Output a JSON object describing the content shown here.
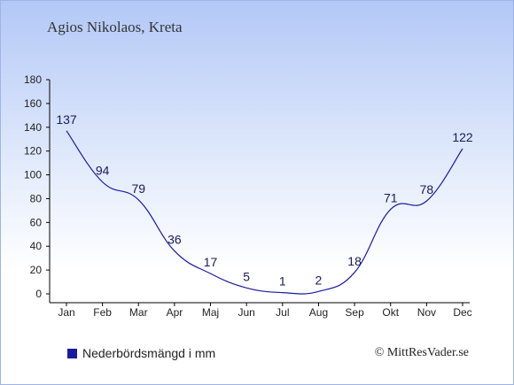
{
  "header": {
    "title": "Agios Nikolaos, Kreta"
  },
  "legend": {
    "label": "Nederbördsmängd i mm"
  },
  "credit": {
    "text": "© MittResVader.se"
  },
  "colors": {
    "line": "#1a1aa0",
    "axis": "#000000"
  },
  "chart_data": {
    "type": "line",
    "title": "Agios Nikolaos, Kreta",
    "xlabel": "",
    "ylabel": "",
    "categories": [
      "Jan",
      "Feb",
      "Mar",
      "Apr",
      "Maj",
      "Jun",
      "Jul",
      "Aug",
      "Sep",
      "Okt",
      "Nov",
      "Dec"
    ],
    "series": [
      {
        "name": "Nederbördsmängd i mm",
        "values": [
          137,
          94,
          79,
          36,
          17,
          5,
          1,
          2,
          18,
          71,
          78,
          122
        ]
      }
    ],
    "ylim": [
      0,
      180
    ],
    "yticks": [
      0,
      20,
      40,
      60,
      80,
      100,
      120,
      140,
      160,
      180
    ],
    "grid": false,
    "legend_position": "bottom-left"
  }
}
